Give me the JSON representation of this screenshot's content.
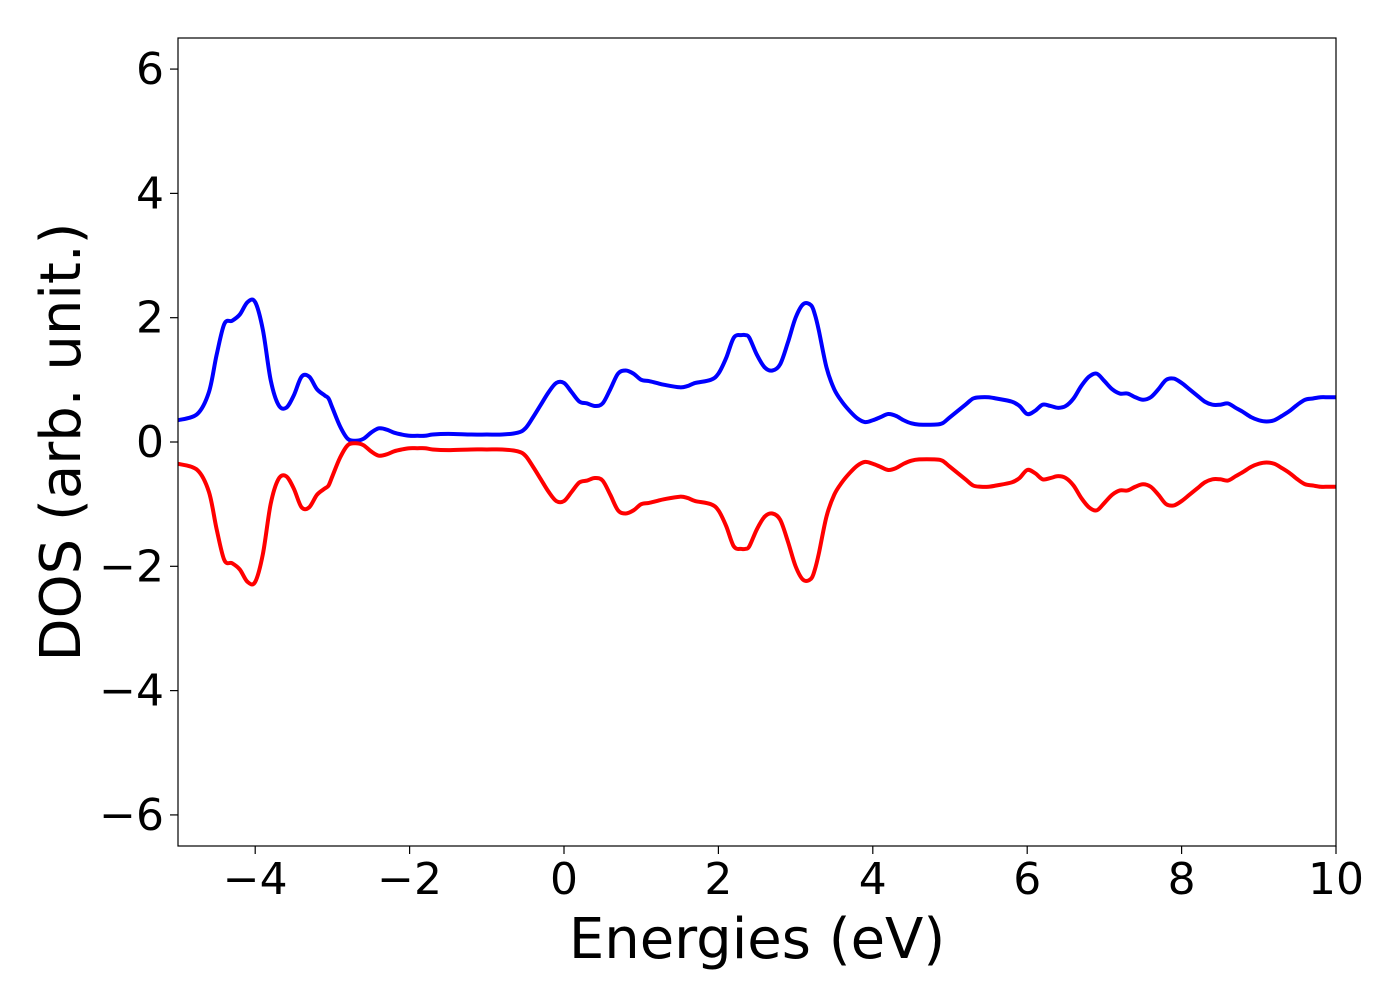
{
  "chart_data": {
    "type": "line",
    "title": "",
    "xlabel": "Energies (eV)",
    "ylabel": "DOS (arb. unit.)",
    "xlim": [
      -5,
      10
    ],
    "ylim": [
      -6.5,
      6.5
    ],
    "xticks": [
      -4,
      -2,
      0,
      2,
      4,
      6,
      8,
      10
    ],
    "yticks": [
      -6,
      -4,
      -2,
      0,
      2,
      4,
      6
    ],
    "xtick_labels": [
      "−4",
      "−2",
      "0",
      "2",
      "4",
      "6",
      "8",
      "10"
    ],
    "ytick_labels": [
      "−6",
      "−4",
      "−2",
      "0",
      "2",
      "4",
      "6"
    ],
    "grid": false,
    "legend": "none",
    "series": [
      {
        "color": "#0000ff",
        "x": [
          -5.0,
          -4.75,
          -4.6,
          -4.5,
          -4.4,
          -4.3,
          -4.2,
          -4.1,
          -4.0,
          -3.9,
          -3.8,
          -3.7,
          -3.6,
          -3.5,
          -3.4,
          -3.3,
          -3.2,
          -3.1,
          -3.05,
          -3.0,
          -2.9,
          -2.8,
          -2.7,
          -2.6,
          -2.5,
          -2.4,
          -2.3,
          -2.2,
          -2.1,
          -2.0,
          -1.9,
          -1.8,
          -1.7,
          -1.5,
          -1.2,
          -1.0,
          -0.8,
          -0.6,
          -0.5,
          -0.4,
          -0.3,
          -0.2,
          -0.1,
          0.0,
          0.1,
          0.2,
          0.3,
          0.4,
          0.5,
          0.6,
          0.7,
          0.8,
          0.9,
          1.0,
          1.1,
          1.2,
          1.3,
          1.5,
          1.6,
          1.7,
          1.9,
          2.0,
          2.1,
          2.2,
          2.3,
          2.35,
          2.4,
          2.5,
          2.6,
          2.7,
          2.8,
          2.9,
          3.0,
          3.1,
          3.2,
          3.25,
          3.3,
          3.4,
          3.5,
          3.6,
          3.7,
          3.8,
          3.9,
          4.0,
          4.1,
          4.2,
          4.3,
          4.4,
          4.5,
          4.6,
          4.8,
          4.9,
          5.0,
          5.2,
          5.3,
          5.4,
          5.5,
          5.6,
          5.8,
          5.9,
          6.0,
          6.1,
          6.2,
          6.3,
          6.4,
          6.5,
          6.6,
          6.7,
          6.8,
          6.9,
          7.0,
          7.1,
          7.2,
          7.3,
          7.4,
          7.5,
          7.6,
          7.7,
          7.8,
          7.9,
          8.0,
          8.1,
          8.2,
          8.3,
          8.4,
          8.5,
          8.6,
          8.7,
          8.8,
          8.9,
          9.0,
          9.1,
          9.2,
          9.3,
          9.4,
          9.5,
          9.6,
          9.7,
          9.8,
          9.9,
          10.0
        ],
        "y": [
          0.35,
          0.45,
          0.8,
          1.4,
          1.9,
          1.95,
          2.05,
          2.25,
          2.25,
          1.8,
          1.0,
          0.6,
          0.55,
          0.75,
          1.05,
          1.05,
          0.85,
          0.75,
          0.7,
          0.55,
          0.25,
          0.05,
          0.02,
          0.05,
          0.15,
          0.22,
          0.2,
          0.15,
          0.12,
          0.1,
          0.1,
          0.1,
          0.12,
          0.13,
          0.12,
          0.12,
          0.12,
          0.15,
          0.22,
          0.4,
          0.6,
          0.8,
          0.95,
          0.95,
          0.8,
          0.65,
          0.62,
          0.58,
          0.62,
          0.85,
          1.1,
          1.15,
          1.1,
          1.0,
          0.98,
          0.95,
          0.92,
          0.88,
          0.9,
          0.95,
          1.0,
          1.1,
          1.35,
          1.68,
          1.72,
          1.72,
          1.68,
          1.4,
          1.2,
          1.15,
          1.25,
          1.6,
          2.0,
          2.22,
          2.2,
          2.05,
          1.8,
          1.2,
          0.85,
          0.65,
          0.5,
          0.38,
          0.32,
          0.35,
          0.4,
          0.45,
          0.42,
          0.35,
          0.3,
          0.28,
          0.28,
          0.3,
          0.4,
          0.6,
          0.7,
          0.72,
          0.72,
          0.7,
          0.65,
          0.58,
          0.45,
          0.5,
          0.6,
          0.58,
          0.55,
          0.58,
          0.7,
          0.9,
          1.05,
          1.1,
          0.98,
          0.85,
          0.78,
          0.78,
          0.72,
          0.68,
          0.72,
          0.85,
          1.0,
          1.02,
          0.95,
          0.85,
          0.75,
          0.65,
          0.6,
          0.6,
          0.62,
          0.55,
          0.48,
          0.4,
          0.35,
          0.33,
          0.35,
          0.42,
          0.5,
          0.6,
          0.68,
          0.7,
          0.72,
          0.72,
          0.72
        ]
      },
      {
        "color": "#ff0000",
        "x": [
          -5.0,
          -4.75,
          -4.6,
          -4.5,
          -4.4,
          -4.3,
          -4.2,
          -4.1,
          -4.0,
          -3.9,
          -3.8,
          -3.7,
          -3.6,
          -3.5,
          -3.4,
          -3.3,
          -3.2,
          -3.1,
          -3.05,
          -3.0,
          -2.9,
          -2.8,
          -2.7,
          -2.6,
          -2.5,
          -2.4,
          -2.3,
          -2.2,
          -2.1,
          -2.0,
          -1.9,
          -1.8,
          -1.7,
          -1.5,
          -1.2,
          -1.0,
          -0.8,
          -0.6,
          -0.5,
          -0.4,
          -0.3,
          -0.2,
          -0.1,
          0.0,
          0.1,
          0.2,
          0.3,
          0.4,
          0.5,
          0.6,
          0.7,
          0.8,
          0.9,
          1.0,
          1.1,
          1.2,
          1.3,
          1.5,
          1.6,
          1.7,
          1.9,
          2.0,
          2.1,
          2.2,
          2.3,
          2.35,
          2.4,
          2.5,
          2.6,
          2.7,
          2.8,
          2.9,
          3.0,
          3.1,
          3.2,
          3.25,
          3.3,
          3.4,
          3.5,
          3.6,
          3.7,
          3.8,
          3.9,
          4.0,
          4.1,
          4.2,
          4.3,
          4.4,
          4.5,
          4.6,
          4.8,
          4.9,
          5.0,
          5.2,
          5.3,
          5.4,
          5.5,
          5.6,
          5.8,
          5.9,
          6.0,
          6.1,
          6.2,
          6.3,
          6.4,
          6.5,
          6.6,
          6.7,
          6.8,
          6.9,
          7.0,
          7.1,
          7.2,
          7.3,
          7.4,
          7.5,
          7.6,
          7.7,
          7.8,
          7.9,
          8.0,
          8.1,
          8.2,
          8.3,
          8.4,
          8.5,
          8.6,
          8.7,
          8.8,
          8.9,
          9.0,
          9.1,
          9.2,
          9.3,
          9.4,
          9.5,
          9.6,
          9.7,
          9.8,
          9.9,
          10.0
        ],
        "y": [
          -0.35,
          -0.45,
          -0.8,
          -1.4,
          -1.9,
          -1.95,
          -2.05,
          -2.25,
          -2.25,
          -1.8,
          -1.0,
          -0.6,
          -0.55,
          -0.75,
          -1.05,
          -1.05,
          -0.85,
          -0.75,
          -0.7,
          -0.55,
          -0.25,
          -0.05,
          -0.02,
          -0.05,
          -0.15,
          -0.22,
          -0.2,
          -0.15,
          -0.12,
          -0.1,
          -0.1,
          -0.1,
          -0.12,
          -0.13,
          -0.12,
          -0.12,
          -0.12,
          -0.15,
          -0.22,
          -0.4,
          -0.6,
          -0.8,
          -0.95,
          -0.95,
          -0.8,
          -0.65,
          -0.62,
          -0.58,
          -0.62,
          -0.85,
          -1.1,
          -1.15,
          -1.1,
          -1.0,
          -0.98,
          -0.95,
          -0.92,
          -0.88,
          -0.9,
          -0.95,
          -1.0,
          -1.1,
          -1.35,
          -1.68,
          -1.72,
          -1.72,
          -1.68,
          -1.4,
          -1.2,
          -1.15,
          -1.25,
          -1.6,
          -2.0,
          -2.22,
          -2.2,
          -2.05,
          -1.8,
          -1.2,
          -0.85,
          -0.65,
          -0.5,
          -0.38,
          -0.32,
          -0.35,
          -0.4,
          -0.45,
          -0.42,
          -0.35,
          -0.3,
          -0.28,
          -0.28,
          -0.3,
          -0.4,
          -0.6,
          -0.7,
          -0.72,
          -0.72,
          -0.7,
          -0.65,
          -0.58,
          -0.45,
          -0.5,
          -0.6,
          -0.58,
          -0.55,
          -0.58,
          -0.7,
          -0.9,
          -1.05,
          -1.1,
          -0.98,
          -0.85,
          -0.78,
          -0.78,
          -0.72,
          -0.68,
          -0.72,
          -0.85,
          -1.0,
          -1.02,
          -0.95,
          -0.85,
          -0.75,
          -0.65,
          -0.6,
          -0.6,
          -0.62,
          -0.55,
          -0.48,
          -0.4,
          -0.35,
          -0.33,
          -0.35,
          -0.42,
          -0.5,
          -0.6,
          -0.68,
          -0.7,
          -0.72,
          -0.72,
          -0.72
        ]
      }
    ]
  }
}
